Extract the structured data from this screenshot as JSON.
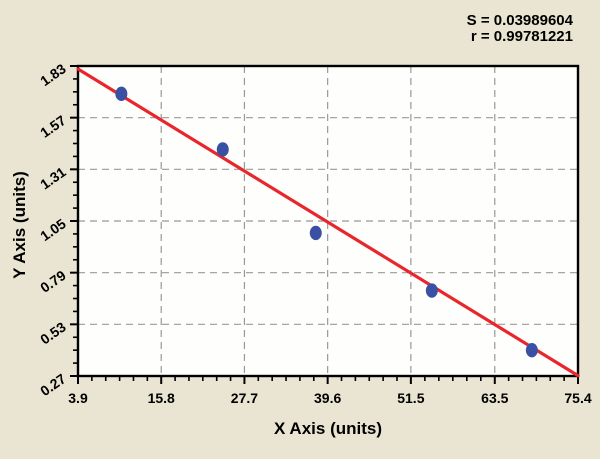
{
  "chart_data": {
    "type": "scatter",
    "title": "",
    "annotations": [
      "S = 0.03989604",
      "r = 0.99781221"
    ],
    "xlabel": "X Axis (units)",
    "ylabel": "Y Axis (units)",
    "x_ticks": [
      3.9,
      15.8,
      27.7,
      39.6,
      51.5,
      63.5,
      75.4
    ],
    "x_tick_labels": [
      "3.9",
      "15.8",
      "27.7",
      "39.6",
      "51.5",
      "63.5",
      "75.4"
    ],
    "y_ticks": [
      0.27,
      0.53,
      0.79,
      1.05,
      1.31,
      1.57,
      1.83
    ],
    "y_tick_labels": [
      "0.27",
      "0.53",
      "0.79",
      "1.05",
      "1.31",
      "1.57",
      "1.83"
    ],
    "xlim": [
      3.9,
      75.4
    ],
    "ylim": [
      0.27,
      1.83
    ],
    "grid": "dashed, on all interior major ticks",
    "legend_position": "none",
    "points": [
      [
        10.1,
        1.69
      ],
      [
        24.6,
        1.41
      ],
      [
        37.9,
        0.99
      ],
      [
        54.5,
        0.7
      ],
      [
        68.8,
        0.4
      ]
    ],
    "regression_line": {
      "x1": 3.9,
      "y1": 1.815,
      "x2": 75.4,
      "y2": 0.272
    },
    "minor_ticks_per_x_interval": 5,
    "minor_ticks_per_y_interval": 3,
    "colors": {
      "page_bg": "#e9e5d2",
      "plot_bg": "#fefefc",
      "point": "#3a51a3",
      "line": "#e8262b",
      "grid": "#999999",
      "axis": "#000000",
      "text": "#000000"
    }
  }
}
